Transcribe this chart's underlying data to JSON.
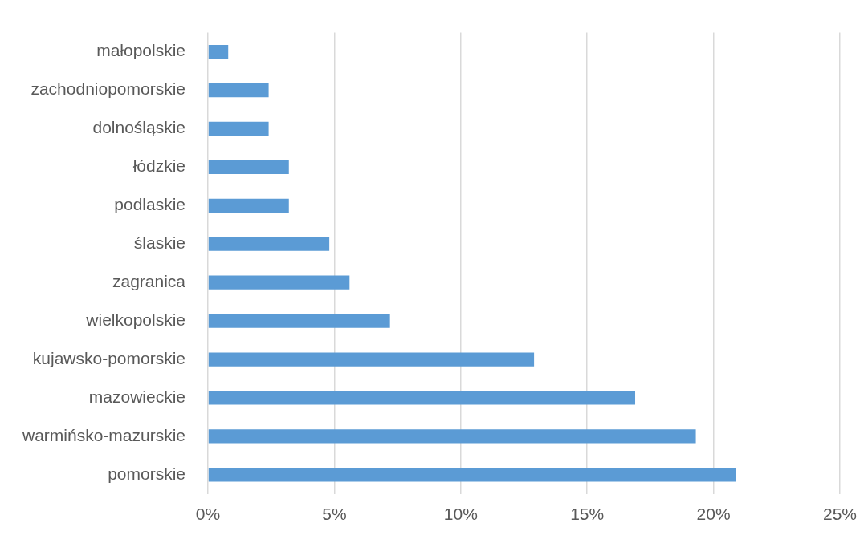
{
  "chart_data": {
    "type": "bar",
    "orientation": "horizontal",
    "categories": [
      "małopolskie",
      "zachodniopomorskie",
      "dolnośląskie",
      "łódzkie",
      "podlaskie",
      "ślaskie",
      "zagranica",
      "wielkopolskie",
      "kujawsko-pomorskie",
      "mazowieckie",
      "warmińsko-mazurskie",
      "pomorskie"
    ],
    "values": [
      0.8,
      2.4,
      2.4,
      3.2,
      3.2,
      4.8,
      5.6,
      7.2,
      12.9,
      16.9,
      19.3,
      20.9
    ],
    "color": "#5b9bd5",
    "xlim": [
      0,
      25
    ],
    "xticks": [
      {
        "value": 0,
        "label": "0%"
      },
      {
        "value": 5,
        "label": "5%"
      },
      {
        "value": 10,
        "label": "10%"
      },
      {
        "value": 15,
        "label": "15%"
      },
      {
        "value": 20,
        "label": "20%"
      },
      {
        "value": 25,
        "label": "25%"
      }
    ],
    "grid": "x"
  }
}
